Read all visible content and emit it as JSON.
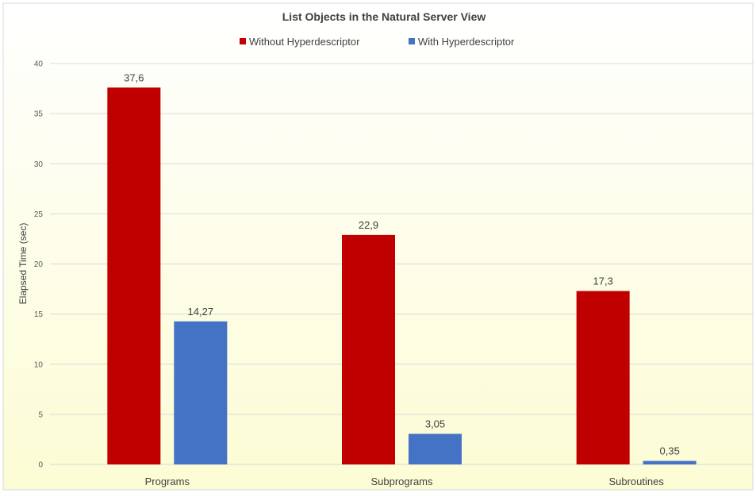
{
  "chart_data": {
    "type": "bar",
    "title": "List Objects in the Natural Server View",
    "xlabel": "",
    "ylabel": "Elapsed Time (sec)",
    "categories": [
      "Programs",
      "Subprograms",
      "Subroutines"
    ],
    "series": [
      {
        "name": "Without Hyperdescriptor",
        "values": [
          37.6,
          22.9,
          17.3
        ],
        "labels": [
          "37,6",
          "22,9",
          "17,3"
        ],
        "color": "#C00000"
      },
      {
        "name": "With Hyperdescriptor",
        "values": [
          14.27,
          3.05,
          0.35
        ],
        "labels": [
          "14,27",
          "3,05",
          "0,35"
        ],
        "color": "#4472C4"
      }
    ],
    "ylim": [
      0,
      40
    ],
    "yticks": [
      "0",
      "5",
      "10",
      "15",
      "20",
      "25",
      "30",
      "35",
      "40"
    ],
    "grid": true,
    "legend_position": "top",
    "background": {
      "top_color": "#FFFFFF",
      "bottom_color": "#FCFCD4"
    },
    "gridline_color": "#D9D9D9"
  }
}
